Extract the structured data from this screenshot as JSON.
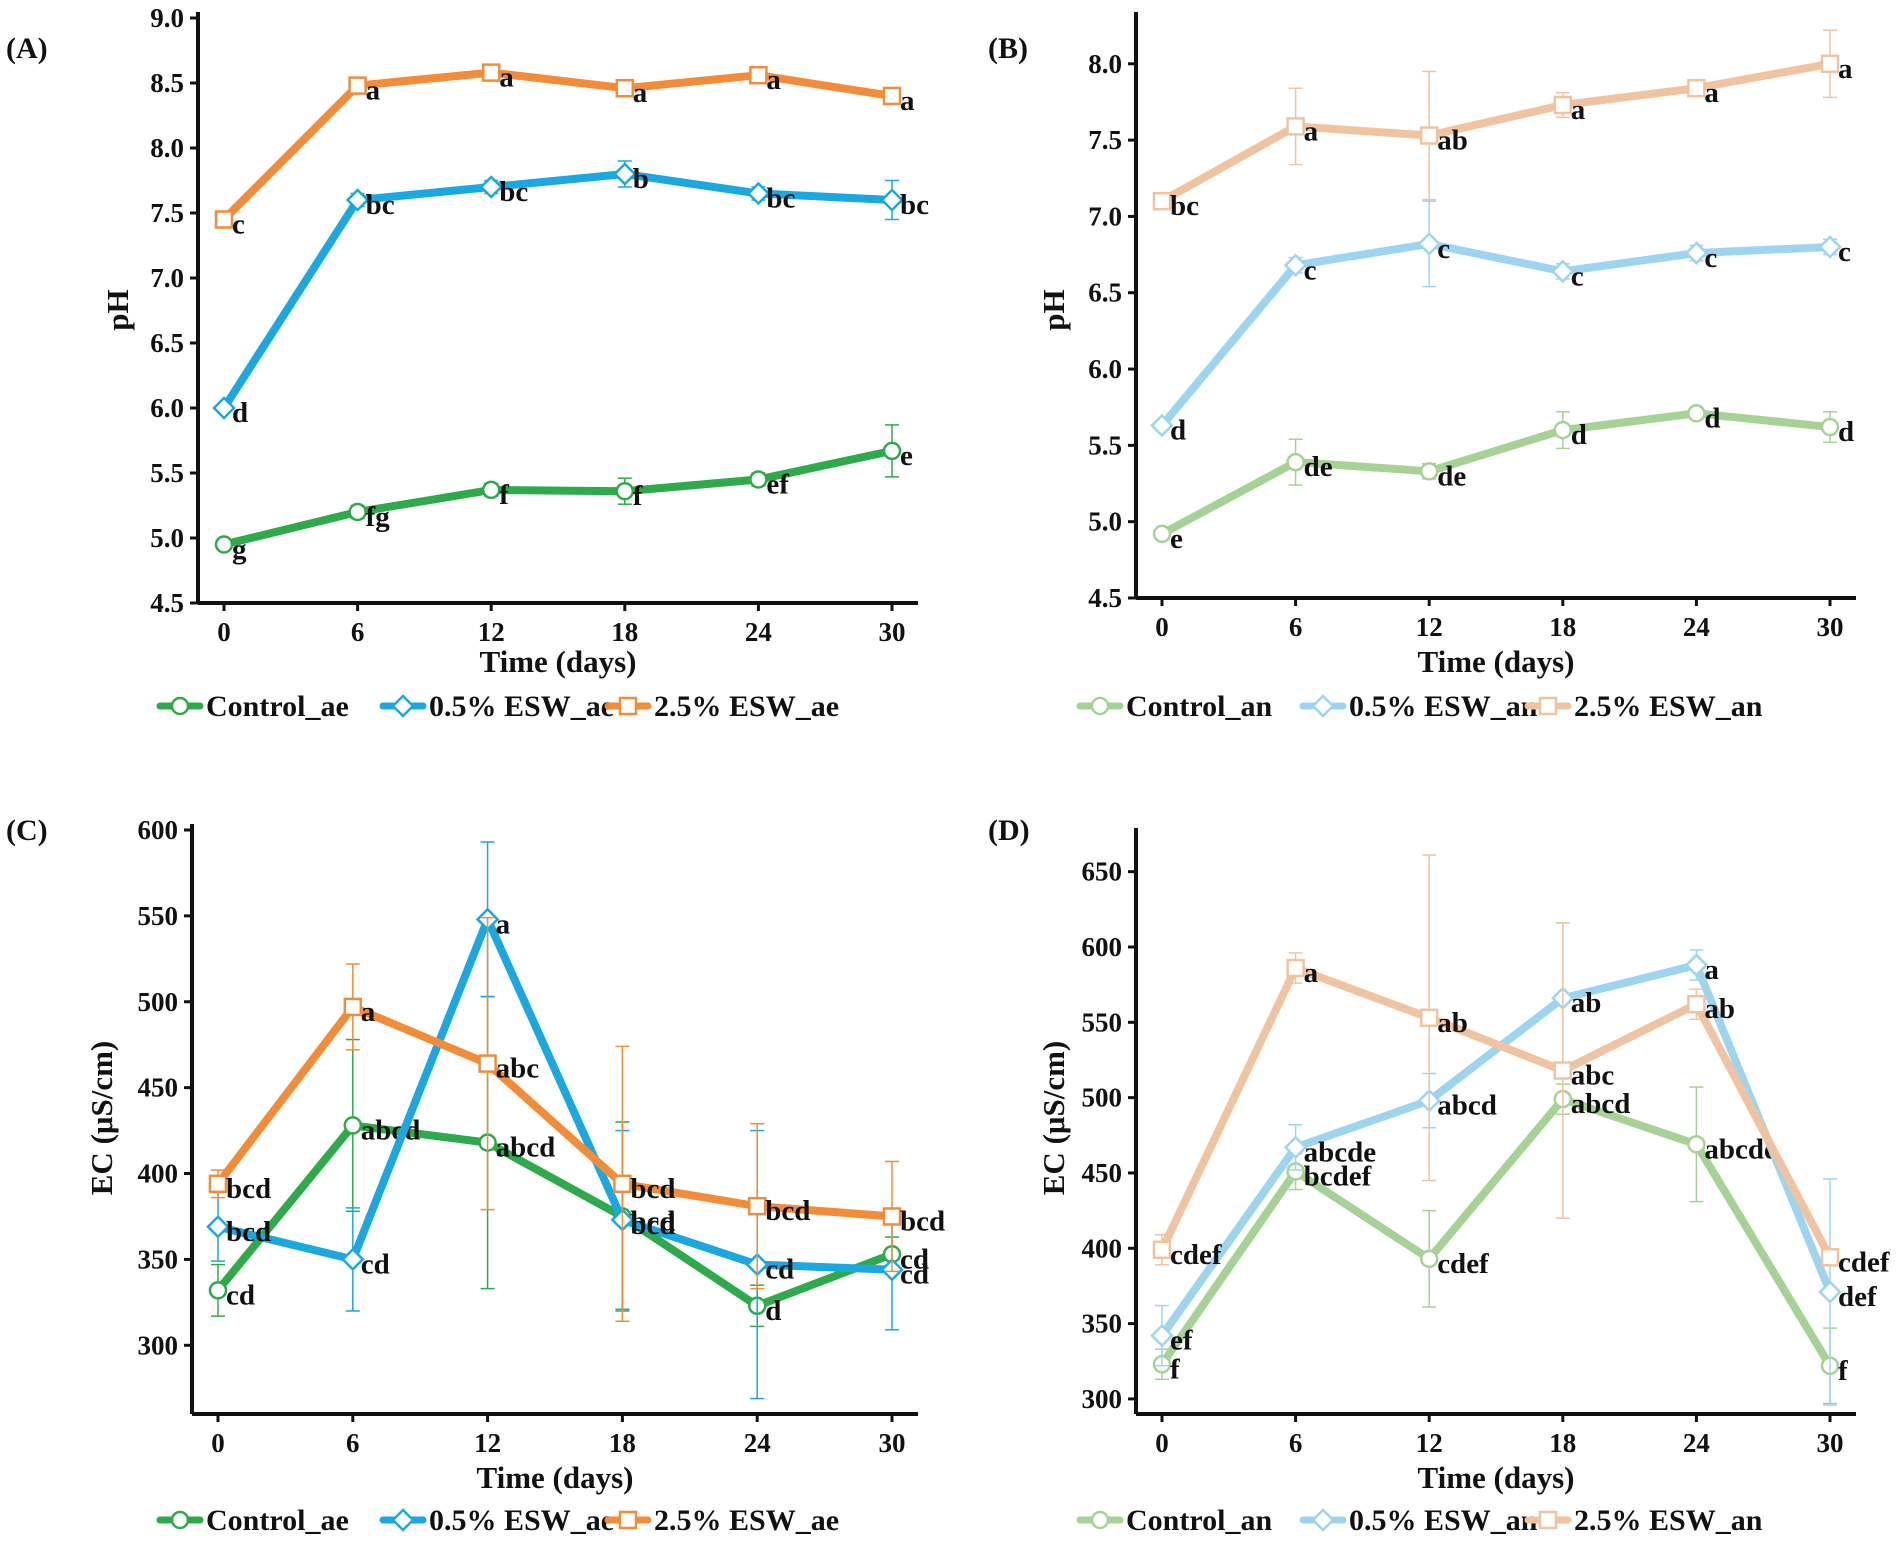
{
  "figure": {
    "panels": [
      {
        "id": "A",
        "label": "(A)",
        "xlabel": "Time (days)",
        "ylabel": "pH",
        "xticks": [
          0,
          6,
          12,
          18,
          24,
          30
        ],
        "ylim": [
          4.5,
          9.0
        ],
        "yticks": [
          "4.5",
          "5.0",
          "5.5",
          "6.0",
          "6.5",
          "7.0",
          "7.5",
          "8.0",
          "8.5",
          "9.0"
        ],
        "legend": [
          "Control_ae",
          "0.5% ESW_ae",
          "2.5% ESW_ae"
        ]
      },
      {
        "id": "B",
        "label": "(B)",
        "xlabel": "Time (days)",
        "ylabel": "pH",
        "xticks": [
          0,
          6,
          12,
          18,
          24,
          30
        ],
        "ylim": [
          4.5,
          8.3
        ],
        "yticks": [
          "4.5",
          "5.0",
          "5.5",
          "6.0",
          "6.5",
          "7.0",
          "7.5",
          "8.0"
        ],
        "legend": [
          "Control_an",
          "0.5% ESW_an",
          "2.5% ESW_an"
        ]
      },
      {
        "id": "C",
        "label": "(C)",
        "xlabel": "Time (days)",
        "ylabel": "EC (μS/cm)",
        "xticks": [
          0,
          6,
          12,
          18,
          24,
          30
        ],
        "ylim": [
          260,
          600
        ],
        "yticks": [
          "300",
          "350",
          "400",
          "450",
          "500",
          "550",
          "600"
        ],
        "legend": [
          "Control_ae",
          "0.5% ESW_ae",
          "2.5% ESW_ae"
        ]
      },
      {
        "id": "D",
        "label": "(D)",
        "xlabel": "Time (days)",
        "ylabel": "EC (μS/cm)",
        "xticks": [
          0,
          6,
          12,
          18,
          24,
          30
        ],
        "ylim": [
          290,
          675
        ],
        "yticks": [
          "300",
          "350",
          "400",
          "450",
          "500",
          "550",
          "600",
          "650"
        ],
        "legend": [
          "Control_an",
          "0.5% ESW_an",
          "2.5% ESW_an"
        ]
      }
    ]
  },
  "chart_data": [
    {
      "type": "line",
      "title": "(A)",
      "xlabel": "Time (days)",
      "ylabel": "pH",
      "x": [
        0,
        6,
        12,
        18,
        24,
        30
      ],
      "ylim": [
        4.5,
        9.0
      ],
      "legend_position": "bottom",
      "series": [
        {
          "name": "Control_ae",
          "color": "#2eaa4a",
          "marker": "circle",
          "values": [
            4.95,
            5.2,
            5.37,
            5.36,
            5.45,
            5.67
          ],
          "errors": [
            0.03,
            0.05,
            0.05,
            0.1,
            0.05,
            0.2
          ],
          "letters": [
            "g",
            "fg",
            "f",
            "f",
            "ef",
            "e"
          ]
        },
        {
          "name": "0.5% ESW_ae",
          "color": "#1ba8e0",
          "marker": "diamond",
          "values": [
            6.0,
            7.6,
            7.7,
            7.8,
            7.65,
            7.6
          ],
          "errors": [
            0.03,
            0.05,
            0.05,
            0.1,
            0.05,
            0.15
          ],
          "letters": [
            "d",
            "bc",
            "bc",
            "b",
            "bc",
            "bc"
          ]
        },
        {
          "name": "2.5% ESW_ae",
          "color": "#f28c38",
          "marker": "square",
          "values": [
            7.45,
            8.48,
            8.58,
            8.46,
            8.56,
            8.4
          ],
          "errors": [
            0.03,
            0.03,
            0.05,
            0.05,
            0.05,
            0.05
          ],
          "letters": [
            "c",
            "a",
            "a",
            "a",
            "a",
            "a"
          ]
        }
      ]
    },
    {
      "type": "line",
      "title": "(B)",
      "xlabel": "Time (days)",
      "ylabel": "pH",
      "x": [
        0,
        6,
        12,
        18,
        24,
        30
      ],
      "ylim": [
        4.5,
        8.3
      ],
      "legend_position": "bottom",
      "series": [
        {
          "name": "Control_an",
          "color": "#a6d296",
          "marker": "circle",
          "values": [
            4.92,
            5.39,
            5.33,
            5.6,
            5.71,
            5.62
          ],
          "errors": [
            0.03,
            0.15,
            0.05,
            0.12,
            0.03,
            0.1
          ],
          "letters": [
            "e",
            "de",
            "de",
            "d",
            "d",
            "d"
          ]
        },
        {
          "name": "0.5% ESW_an",
          "color": "#9dd5f0",
          "marker": "diamond",
          "values": [
            5.63,
            6.68,
            6.82,
            6.64,
            6.76,
            6.8
          ],
          "errors": [
            0.03,
            0.05,
            0.28,
            0.05,
            0.05,
            0.05
          ],
          "letters": [
            "d",
            "c",
            "c",
            "c",
            "c",
            "c"
          ]
        },
        {
          "name": "2.5% ESW_an",
          "color": "#f0c4a0",
          "marker": "square",
          "values": [
            7.1,
            7.59,
            7.53,
            7.73,
            7.84,
            8.0
          ],
          "errors": [
            0.03,
            0.25,
            0.42,
            0.08,
            0.05,
            0.22
          ],
          "letters": [
            "bc",
            "a",
            "ab",
            "a",
            "a",
            "a"
          ]
        }
      ]
    },
    {
      "type": "line",
      "title": "(C)",
      "xlabel": "Time (days)",
      "ylabel": "EC (μS/cm)",
      "x": [
        0,
        6,
        12,
        18,
        24,
        30
      ],
      "ylim": [
        260,
        600
      ],
      "legend_position": "bottom",
      "series": [
        {
          "name": "Control_ae",
          "color": "#2eaa4a",
          "marker": "circle",
          "values": [
            332,
            428,
            418,
            375,
            323,
            353
          ],
          "errors": [
            15,
            50,
            85,
            55,
            12,
            10
          ],
          "letters": [
            "cd",
            "abcd",
            "abcd",
            "bcd",
            "d",
            "cd"
          ]
        },
        {
          "name": "0.5% ESW_ae",
          "color": "#1ba8e0",
          "marker": "diamond",
          "values": [
            369,
            350,
            548,
            373,
            347,
            344
          ],
          "errors": [
            20,
            30,
            45,
            52,
            78,
            35
          ],
          "letters": [
            "bcd",
            "cd",
            "a",
            "bcd",
            "cd",
            "cd"
          ]
        },
        {
          "name": "2.5% ESW_ae",
          "color": "#f28c38",
          "marker": "square",
          "values": [
            394,
            497,
            464,
            394,
            381,
            375
          ],
          "errors": [
            8,
            25,
            85,
            80,
            48,
            32
          ],
          "letters": [
            "bcd",
            "a",
            "abc",
            "bcd",
            "bcd",
            "bcd"
          ]
        }
      ]
    },
    {
      "type": "line",
      "title": "(D)",
      "xlabel": "Time (days)",
      "ylabel": "EC (μS/cm)",
      "x": [
        0,
        6,
        12,
        18,
        24,
        30
      ],
      "ylim": [
        290,
        675
      ],
      "legend_position": "bottom",
      "series": [
        {
          "name": "Control_an",
          "color": "#a6d296",
          "marker": "circle",
          "values": [
            323,
            451,
            393,
            499,
            469,
            322
          ],
          "errors": [
            10,
            12,
            32,
            10,
            38,
            25
          ],
          "letters": [
            "f",
            "bcdef",
            "cdef",
            "abcd",
            "abcde",
            "f"
          ]
        },
        {
          "name": "0.5% ESW_an",
          "color": "#9dd5f0",
          "marker": "diamond",
          "values": [
            342,
            467,
            498,
            566,
            588,
            371
          ],
          "errors": [
            20,
            15,
            18,
            50,
            10,
            75
          ],
          "letters": [
            "ef",
            "abcde",
            "abcd",
            "ab",
            "a",
            "def"
          ]
        },
        {
          "name": "2.5% ESW_an",
          "color": "#f0c4a0",
          "marker": "square",
          "values": [
            399,
            586,
            553,
            518,
            562,
            394
          ],
          "errors": [
            10,
            10,
            108,
            98,
            10,
            5
          ],
          "letters": [
            "cdef",
            "a",
            "ab",
            "abc",
            "ab",
            "cdef"
          ]
        }
      ]
    }
  ]
}
